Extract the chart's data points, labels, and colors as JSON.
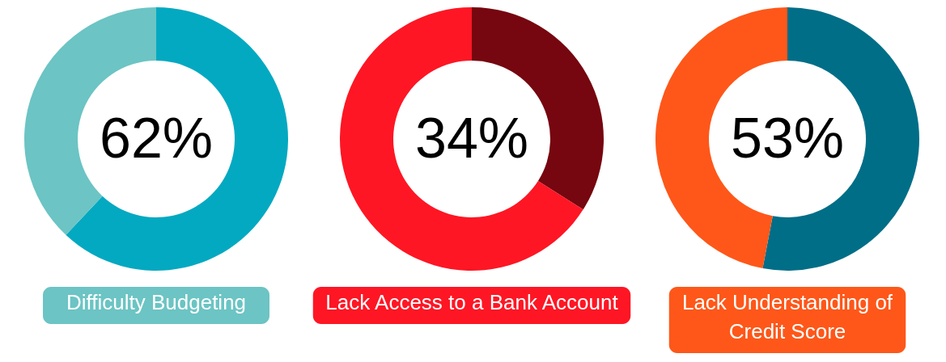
{
  "chart_data": [
    {
      "type": "donut",
      "title": "Difficulty Budgeting",
      "categories": [
        null,
        null
      ],
      "values": [
        62,
        38
      ],
      "colors": [
        "#03a9c1",
        "#6cc4c4"
      ],
      "value_labels": [
        "62%",
        null
      ]
    },
    {
      "type": "donut",
      "title": "Lack Access to a Bank Account",
      "categories": [
        null,
        null
      ],
      "values": [
        34,
        66
      ],
      "colors": [
        "#76060f",
        "#fe1624"
      ],
      "value_labels": [
        "34%",
        null
      ]
    },
    {
      "type": "donut",
      "title": "Lack Understanding of Credit Score",
      "categories": [
        null,
        null
      ],
      "values": [
        53,
        47
      ],
      "colors": [
        "#006e87",
        "#fe5719"
      ],
      "value_labels": [
        "53%",
        null
      ]
    }
  ]
}
